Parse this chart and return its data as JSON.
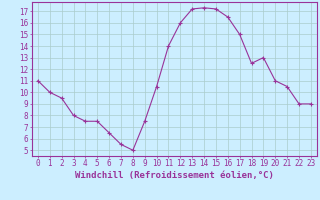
{
  "x": [
    0,
    1,
    2,
    3,
    4,
    5,
    6,
    7,
    8,
    9,
    10,
    11,
    12,
    13,
    14,
    15,
    16,
    17,
    18,
    19,
    20,
    21,
    22,
    23
  ],
  "y": [
    11,
    10,
    9.5,
    8,
    7.5,
    7.5,
    6.5,
    5.5,
    5,
    7.5,
    10.5,
    14,
    16,
    17.2,
    17.3,
    17.2,
    16.5,
    15,
    12.5,
    13,
    11,
    10.5,
    9,
    9
  ],
  "line_color": "#993399",
  "marker": "+",
  "marker_size": 3,
  "bg_color": "#cceeff",
  "grid_color": "#aacccc",
  "xlabel": "Windchill (Refroidissement éolien,°C)",
  "xlabel_fontsize": 6.5,
  "ylabel_ticks": [
    5,
    6,
    7,
    8,
    9,
    10,
    11,
    12,
    13,
    14,
    15,
    16,
    17
  ],
  "xlim": [
    -0.5,
    23.5
  ],
  "ylim": [
    4.5,
    17.8
  ],
  "xtick_labels": [
    "0",
    "1",
    "2",
    "3",
    "4",
    "5",
    "6",
    "7",
    "8",
    "9",
    "10",
    "11",
    "12",
    "13",
    "14",
    "15",
    "16",
    "17",
    "18",
    "19",
    "20",
    "21",
    "22",
    "23"
  ],
  "tick_fontsize": 5.5,
  "axis_color": "#993399",
  "spine_color": "#993399",
  "figsize": [
    3.2,
    2.0
  ],
  "dpi": 100
}
